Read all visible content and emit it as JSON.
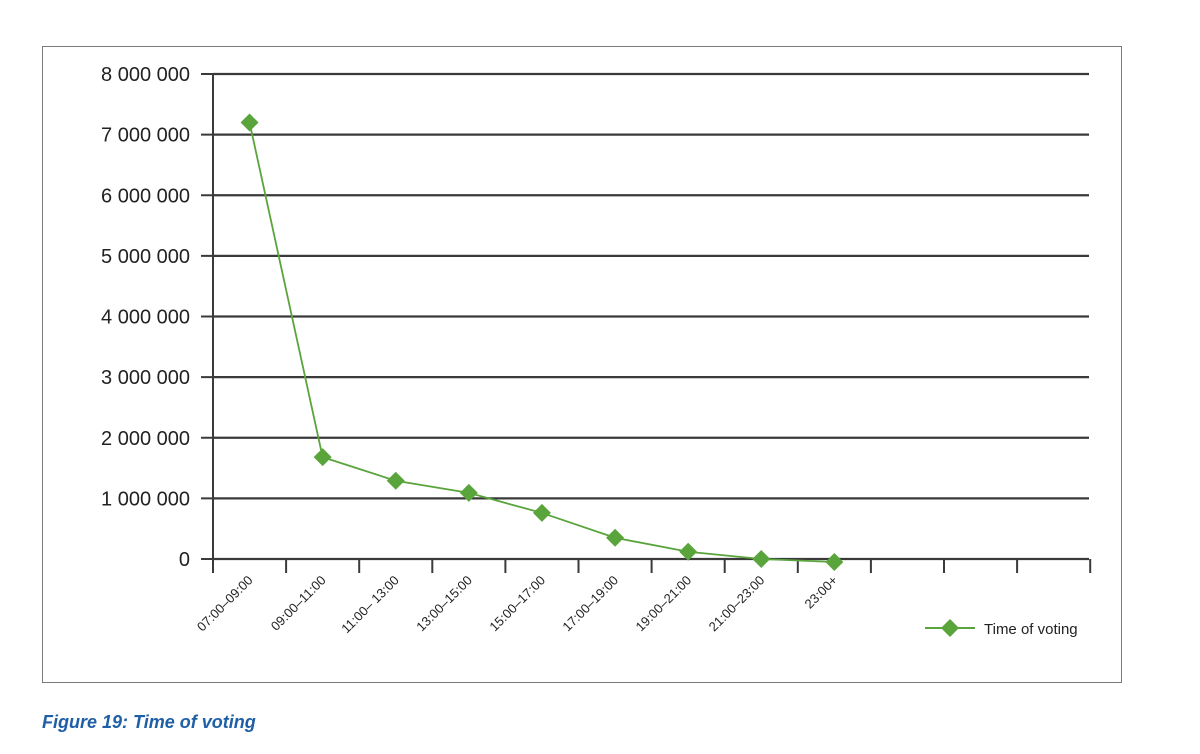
{
  "caption": "Figure 19: Time of voting",
  "colors": {
    "series": "#5aa43c",
    "grid": "#3a3a3a",
    "frame": "#7a7a7a",
    "caption": "#1f5fa6"
  },
  "chart_data": {
    "type": "line",
    "title": "",
    "xlabel": "",
    "ylabel": "",
    "ylim": [
      0,
      8000000
    ],
    "y_ticks": [
      "0",
      "1 000 000",
      "2 000 000",
      "3 000 000",
      "4 000 000",
      "5 000 000",
      "6 000 000",
      "7 000 000",
      "8 000 000"
    ],
    "categories": [
      "07:00–09:00",
      "09:00–11:00",
      "11:00– 13:00",
      "13:00–15:00",
      "15:00–17:00",
      "17:00–19:00",
      "19:00–21:00",
      "21:00–23:00",
      "23:00+"
    ],
    "series": [
      {
        "name": "Time of voting",
        "marker": "diamond",
        "values": [
          7200000,
          1680000,
          1290000,
          1090000,
          760000,
          350000,
          120000,
          0,
          -50000
        ]
      }
    ],
    "grid": true,
    "legend_position": "right"
  }
}
